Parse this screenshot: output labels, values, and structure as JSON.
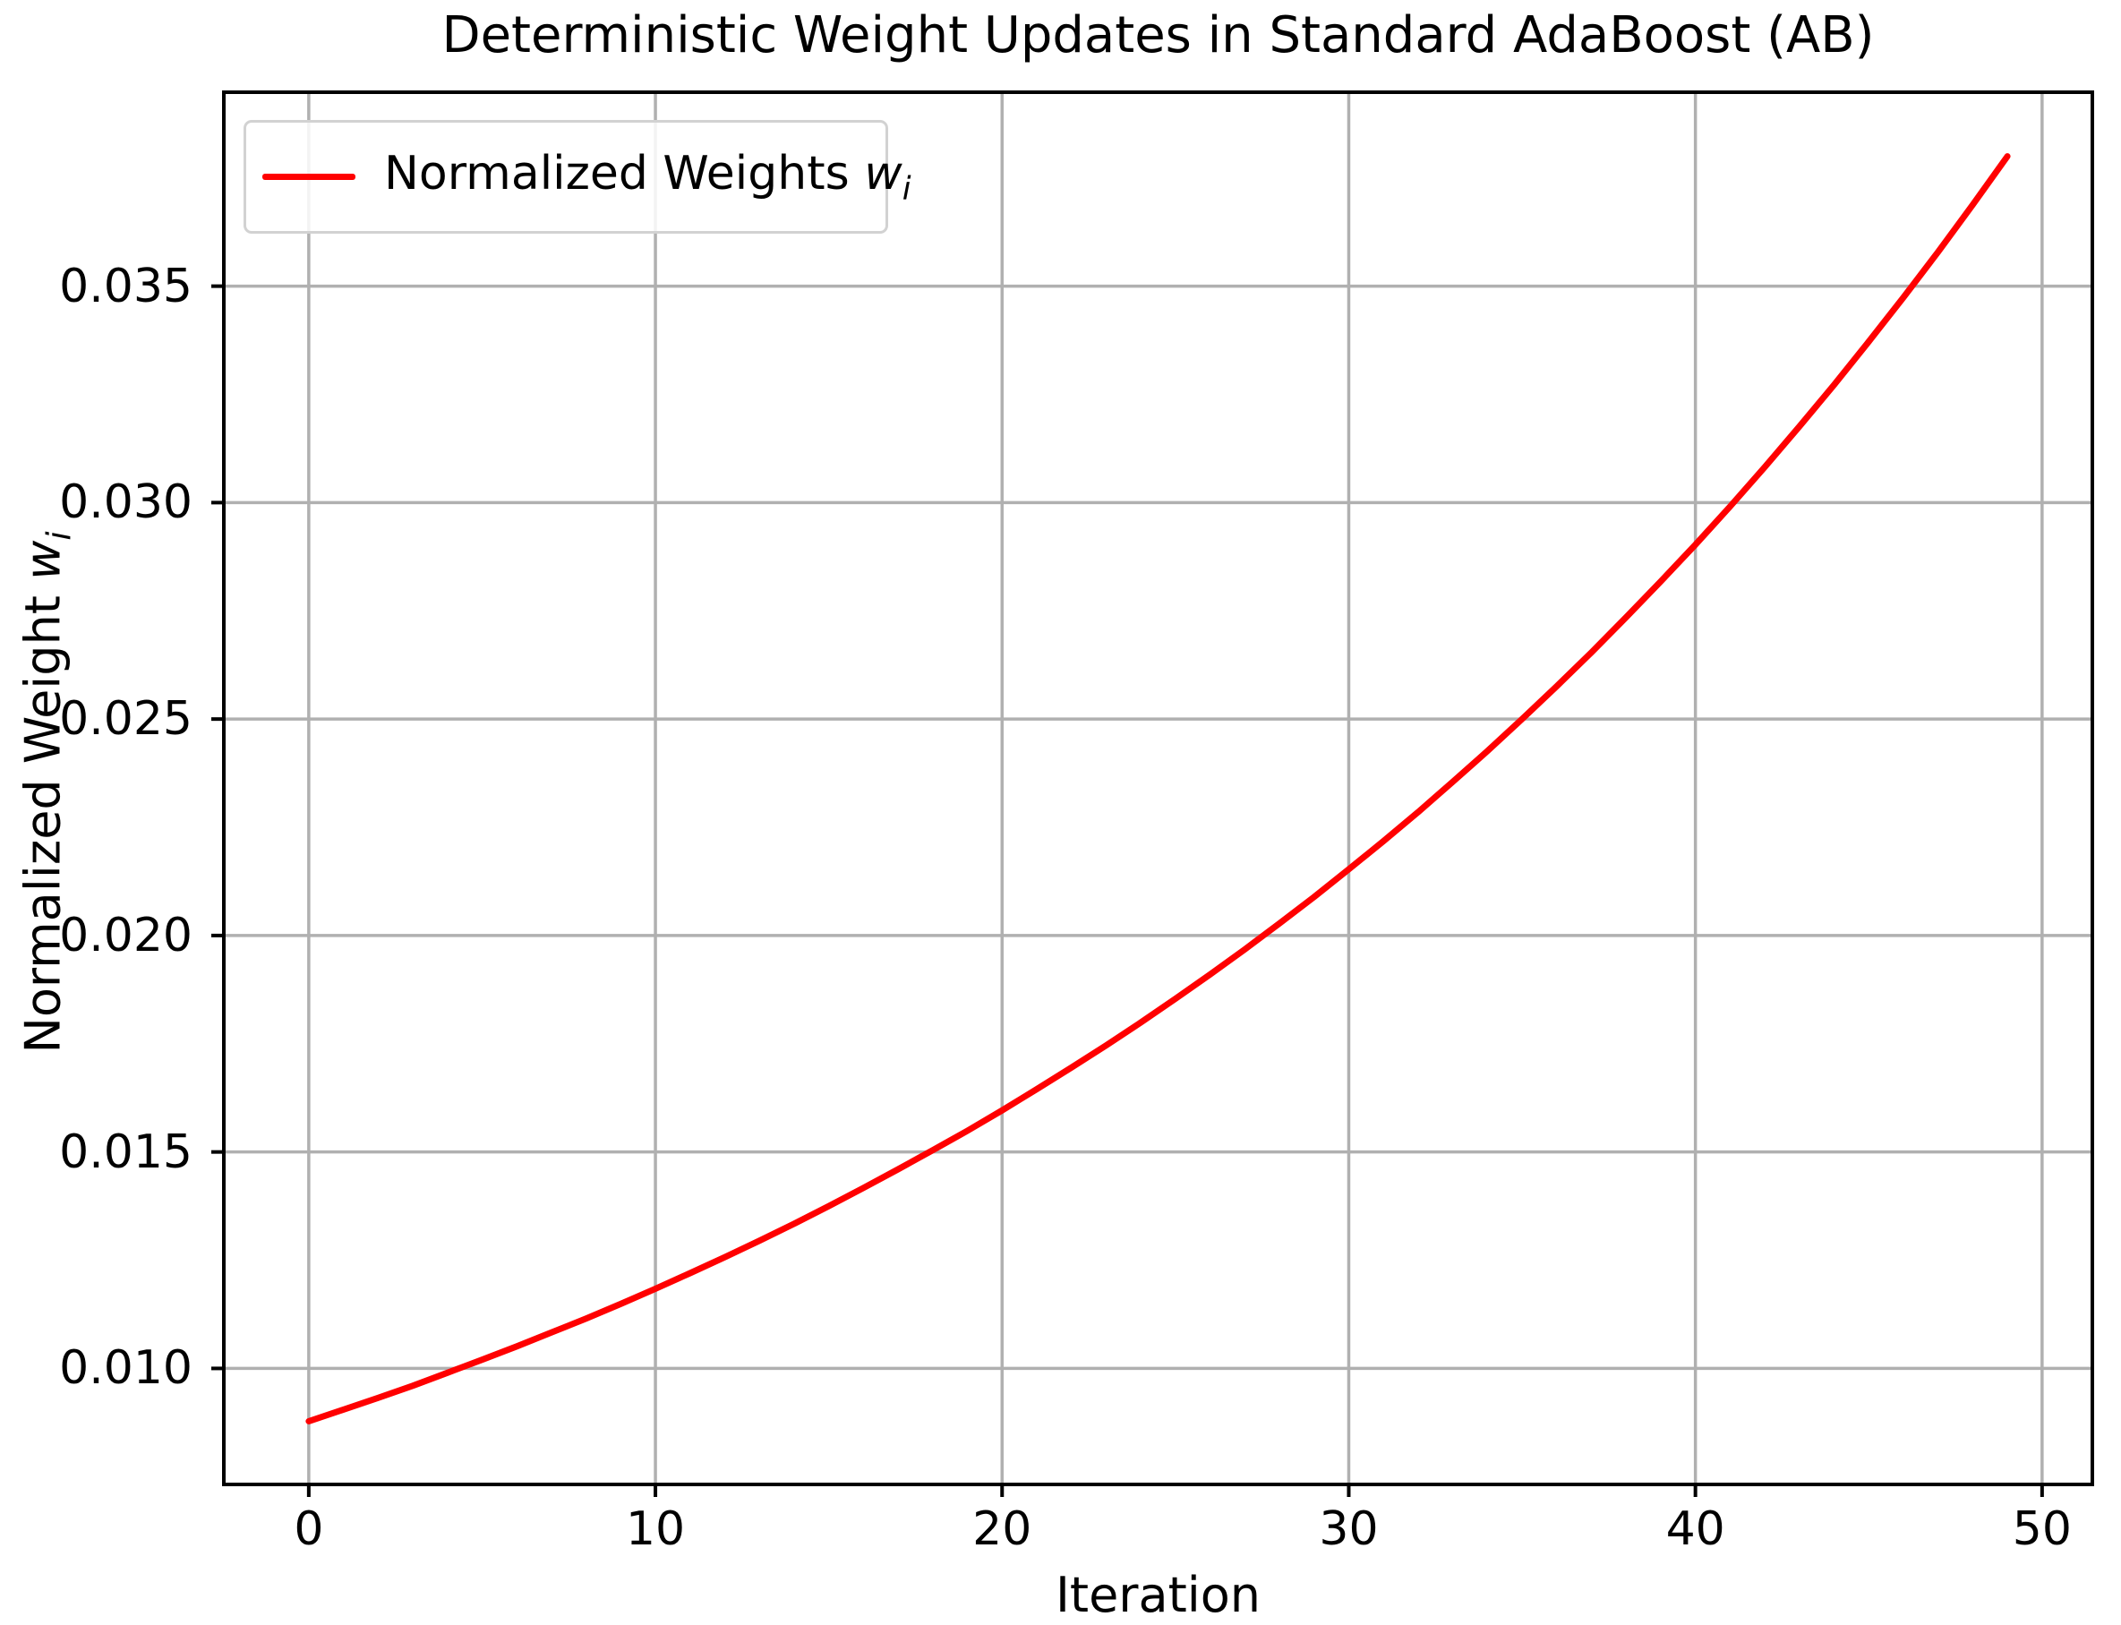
{
  "chart_data": {
    "type": "line",
    "title": "Deterministic Weight Updates in Standard AdaBoost (AB)",
    "xlabel": "Iteration",
    "ylabel_prefix": "Normalized Weight",
    "math_symbol": "w",
    "math_subscript": "i",
    "legend": {
      "prefix": "Normalized Weights",
      "position": "upper left"
    },
    "series": [
      {
        "name": "Normalized Weights w_i",
        "color": "#ff0000",
        "x": [
          0,
          1,
          2,
          3,
          4,
          5,
          6,
          7,
          8,
          9,
          10,
          11,
          12,
          13,
          14,
          15,
          16,
          17,
          18,
          19,
          20,
          21,
          22,
          23,
          24,
          25,
          26,
          27,
          28,
          29,
          30,
          31,
          32,
          33,
          34,
          35,
          36,
          37,
          38,
          39,
          40,
          41,
          42,
          43,
          44,
          45,
          46,
          47,
          48,
          49
        ],
        "values": [
          0.00878,
          0.00905,
          0.00932,
          0.0096,
          0.0099,
          0.0102,
          0.01051,
          0.01083,
          0.01115,
          0.01149,
          0.01184,
          0.0122,
          0.01257,
          0.01295,
          0.01334,
          0.01375,
          0.01417,
          0.0146,
          0.01504,
          0.01549,
          0.01596,
          0.01645,
          0.01695,
          0.01746,
          0.01799,
          0.01854,
          0.0191,
          0.01968,
          0.02028,
          0.02089,
          0.02153,
          0.02218,
          0.02285,
          0.02355,
          0.02426,
          0.025,
          0.02576,
          0.02654,
          0.02735,
          0.02818,
          0.02903,
          0.02991,
          0.03082,
          0.03176,
          0.03272,
          0.03372,
          0.03474,
          0.03579,
          0.03688,
          0.038
        ]
      }
    ],
    "xlim": [
      -2.45,
      51.45
    ],
    "ylim": [
      0.00732,
      0.03948
    ],
    "xticks": {
      "values": [
        0,
        10,
        20,
        30,
        40,
        50
      ],
      "labels": [
        "0",
        "10",
        "20",
        "30",
        "40",
        "50"
      ]
    },
    "yticks": {
      "values": [
        0.01,
        0.015,
        0.02,
        0.025,
        0.03,
        0.035
      ],
      "labels": [
        "0.010",
        "0.015",
        "0.020",
        "0.025",
        "0.030",
        "0.035"
      ]
    },
    "grid": true,
    "colors": {
      "line": "#ff0000",
      "grid": "#b0b0b0",
      "spine": "#000000",
      "background": "#ffffff",
      "legend_border": "#d2d2d2"
    }
  }
}
